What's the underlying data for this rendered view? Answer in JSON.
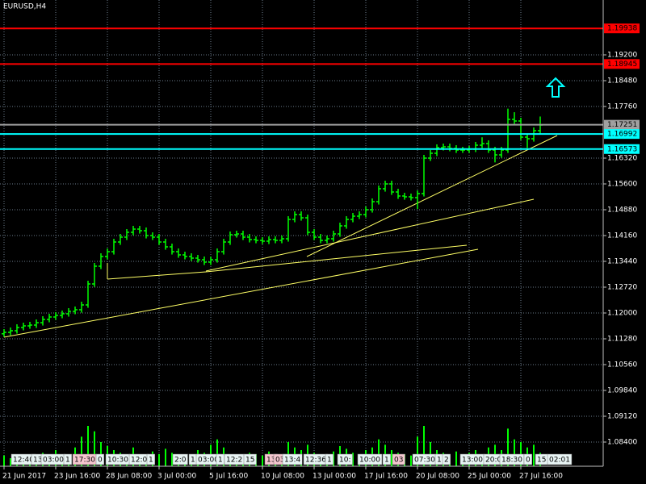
{
  "chart_data": {
    "type": "ohlc",
    "title": "EURUSD,H4",
    "color": "#00ff00",
    "grid": true,
    "categories": [
      "21 Jun 2017",
      null,
      null,
      null,
      null,
      null,
      null,
      null,
      "23 Jun 16:00",
      null,
      null,
      null,
      null,
      null,
      null,
      null,
      "28 Jun 08:00",
      null,
      null,
      null,
      null,
      null,
      null,
      null,
      "3 Jul 00:00",
      null,
      null,
      null,
      null,
      null,
      null,
      null,
      "5 Jul 16:00",
      null,
      null,
      null,
      null,
      null,
      null,
      null,
      "10 Jul 08:00",
      null,
      null,
      null,
      null,
      null,
      null,
      null,
      "13 Jul 00:00",
      null,
      null,
      null,
      null,
      null,
      null,
      null,
      "17 Jul 16:00",
      null,
      null,
      null,
      null,
      null,
      null,
      null,
      "20 Jul 08:00",
      null,
      null,
      null,
      null,
      null,
      null,
      null,
      "25 Jul 00:00",
      null,
      null,
      null,
      null,
      null,
      null,
      null,
      "27 Jul 16:00",
      null,
      null,
      null
    ],
    "open": [
      1.1142,
      1.1146,
      1.11505,
      1.11595,
      1.1164,
      1.11663,
      1.1173,
      1.1182,
      1.11888,
      1.11933,
      1.11978,
      1.12045,
      1.1209,
      1.12225,
      1.1281,
      1.13305,
      1.13575,
      1.1371,
      1.1398,
      1.14115,
      1.1425,
      1.1434,
      1.14295,
      1.1416,
      1.14115,
      1.1398,
      1.13845,
      1.1371,
      1.1362,
      1.13575,
      1.1353,
      1.13485,
      1.13418,
      1.13485,
      1.1371,
      1.1398,
      1.14183,
      1.14205,
      1.14115,
      1.14048,
      1.14025,
      1.14003,
      1.14048,
      1.14025,
      1.1407,
      1.1461,
      1.14745,
      1.14655,
      1.1425,
      1.14115,
      1.14025,
      1.1407,
      1.14205,
      1.1443,
      1.1461,
      1.147,
      1.14745,
      1.1488,
      1.15105,
      1.15465,
      1.156,
      1.15375,
      1.15263,
      1.1524,
      1.15218,
      1.1533,
      1.1632,
      1.16455,
      1.16613,
      1.16635,
      1.1659,
      1.16545,
      1.16545,
      1.16568,
      1.1668,
      1.16725,
      1.16545,
      1.1641,
      1.16545,
      1.174,
      1.17355,
      1.16905,
      1.1686,
      1.17085
    ],
    "high": [
      1.1155,
      1.11595,
      1.11685,
      1.1173,
      1.11753,
      1.1182,
      1.1191,
      1.11978,
      1.12023,
      1.12068,
      1.12135,
      1.1218,
      1.12315,
      1.129,
      1.13395,
      1.13665,
      1.138,
      1.1407,
      1.14205,
      1.1434,
      1.1443,
      1.1443,
      1.14385,
      1.1425,
      1.14205,
      1.1407,
      1.13935,
      1.138,
      1.1371,
      1.13665,
      1.1362,
      1.13575,
      1.13575,
      1.138,
      1.1407,
      1.14273,
      1.14295,
      1.14295,
      1.14205,
      1.14138,
      1.14115,
      1.14138,
      1.14138,
      1.1416,
      1.147,
      1.14835,
      1.14835,
      1.14745,
      1.1434,
      1.14205,
      1.1416,
      1.14295,
      1.1452,
      1.147,
      1.1479,
      1.14835,
      1.1497,
      1.15195,
      1.15555,
      1.1569,
      1.1569,
      1.15465,
      1.15353,
      1.1533,
      1.1542,
      1.1641,
      1.16545,
      1.16703,
      1.16725,
      1.16725,
      1.1668,
      1.16635,
      1.16658,
      1.1677,
      1.169,
      1.16815,
      1.16635,
      1.16635,
      1.177,
      1.176,
      1.17445,
      1.16995,
      1.17175,
      1.1748
    ],
    "low": [
      1.1134,
      1.1138,
      1.11425,
      1.11515,
      1.1156,
      1.11583,
      1.1165,
      1.1174,
      1.11808,
      1.11853,
      1.11898,
      1.11965,
      1.1201,
      1.12145,
      1.1273,
      1.13225,
      1.13495,
      1.1363,
      1.139,
      1.14035,
      1.1417,
      1.14215,
      1.1408,
      1.14035,
      1.139,
      1.13765,
      1.1363,
      1.1354,
      1.13495,
      1.1345,
      1.13405,
      1.13338,
      1.13338,
      1.13405,
      1.1363,
      1.139,
      1.14103,
      1.14035,
      1.13968,
      1.13945,
      1.13923,
      1.13923,
      1.13945,
      1.13945,
      1.1399,
      1.1453,
      1.14575,
      1.1417,
      1.14035,
      1.13945,
      1.13945,
      1.1399,
      1.14125,
      1.1435,
      1.1453,
      1.1462,
      1.14665,
      1.148,
      1.15025,
      1.15385,
      1.15295,
      1.15183,
      1.1516,
      1.15138,
      1.149,
      1.1525,
      1.1624,
      1.16375,
      1.16533,
      1.1651,
      1.16465,
      1.16465,
      1.16465,
      1.16488,
      1.166,
      1.16465,
      1.162,
      1.1633,
      1.16465,
      1.17275,
      1.16825,
      1.166,
      1.1678,
      1.17005
    ],
    "close": [
      1.1146,
      1.11505,
      1.11595,
      1.1164,
      1.11663,
      1.1173,
      1.1182,
      1.11888,
      1.11933,
      1.11978,
      1.12045,
      1.1209,
      1.12225,
      1.1281,
      1.13305,
      1.13575,
      1.1371,
      1.1398,
      1.14115,
      1.1425,
      1.1434,
      1.14295,
      1.1416,
      1.14115,
      1.1398,
      1.13845,
      1.1371,
      1.1362,
      1.13575,
      1.1353,
      1.13485,
      1.13418,
      1.13485,
      1.1371,
      1.1398,
      1.14183,
      1.14205,
      1.14115,
      1.14048,
      1.14025,
      1.14003,
      1.14048,
      1.14025,
      1.1407,
      1.1461,
      1.14745,
      1.14655,
      1.1425,
      1.14115,
      1.14025,
      1.1407,
      1.14205,
      1.1443,
      1.1461,
      1.147,
      1.14745,
      1.1488,
      1.15105,
      1.15465,
      1.156,
      1.15375,
      1.15263,
      1.1524,
      1.15218,
      1.1533,
      1.1632,
      1.16455,
      1.16613,
      1.16635,
      1.1659,
      1.16545,
      1.16545,
      1.16568,
      1.1668,
      1.16725,
      1.16545,
      1.1641,
      1.16545,
      1.174,
      1.17355,
      1.16905,
      1.1686,
      1.17085,
      1.17243
    ],
    "volume": [
      8,
      6,
      7,
      9,
      5,
      8,
      10,
      7,
      12,
      9,
      8,
      14,
      22,
      30,
      26,
      18,
      15,
      12,
      10,
      9,
      14,
      8,
      7,
      11,
      9,
      13,
      10,
      8,
      7,
      9,
      12,
      10,
      16,
      20,
      14,
      9,
      8,
      7,
      10,
      9,
      8,
      11,
      7,
      9,
      18,
      14,
      12,
      16,
      10,
      8,
      9,
      11,
      15,
      13,
      10,
      9,
      12,
      14,
      20,
      16,
      12,
      10,
      9,
      8,
      22,
      30,
      18,
      12,
      10,
      9,
      11,
      8,
      10,
      12,
      9,
      14,
      16,
      12,
      28,
      20,
      18,
      14,
      16,
      10
    ],
    "ylim": [
      1.07725,
      1.2073
    ],
    "yticks": [
      {
        "value": 1.192,
        "label": "1.19200"
      },
      {
        "value": 1.1848,
        "label": "1.18480"
      },
      {
        "value": 1.1776,
        "label": "1.17760"
      },
      {
        "value": 1.1632,
        "label": "1.16320"
      },
      {
        "value": 1.156,
        "label": "1.15600"
      },
      {
        "value": 1.1488,
        "label": "1.14880"
      },
      {
        "value": 1.1416,
        "label": "1.14160"
      },
      {
        "value": 1.1344,
        "label": "1.13440"
      },
      {
        "value": 1.1272,
        "label": "1.12720"
      },
      {
        "value": 1.12,
        "label": "1.12000"
      },
      {
        "value": 1.1128,
        "label": "1.11280"
      },
      {
        "value": 1.1056,
        "label": "1.10560"
      },
      {
        "value": 1.0984,
        "label": "1.09840"
      },
      {
        "value": 1.0912,
        "label": "1.09120"
      },
      {
        "value": 1.084,
        "label": "1.08400"
      }
    ],
    "levels": [
      {
        "value": 1.19938,
        "color": "#ff0000"
      },
      {
        "value": 1.18945,
        "color": "#ff0000"
      },
      {
        "value": 1.17251,
        "color": "#a0a0a0"
      },
      {
        "value": 1.16992,
        "color": "#00ffff"
      },
      {
        "value": 1.16573,
        "color": "#00ffff"
      }
    ],
    "time_markers": [
      "12:40",
      "13",
      "03:00",
      "1",
      "17:30",
      "0",
      "10:30",
      "12:0",
      "1",
      "2:0",
      "1",
      "03:00",
      "1",
      "12:2",
      "15",
      "13",
      "03",
      "13:4",
      "12:36",
      "1",
      "10:",
      "10:00",
      "1",
      "03",
      "07:30",
      "1",
      "2",
      "13:00",
      "20:0",
      "18:30",
      "0",
      "15",
      "02:01"
    ]
  }
}
